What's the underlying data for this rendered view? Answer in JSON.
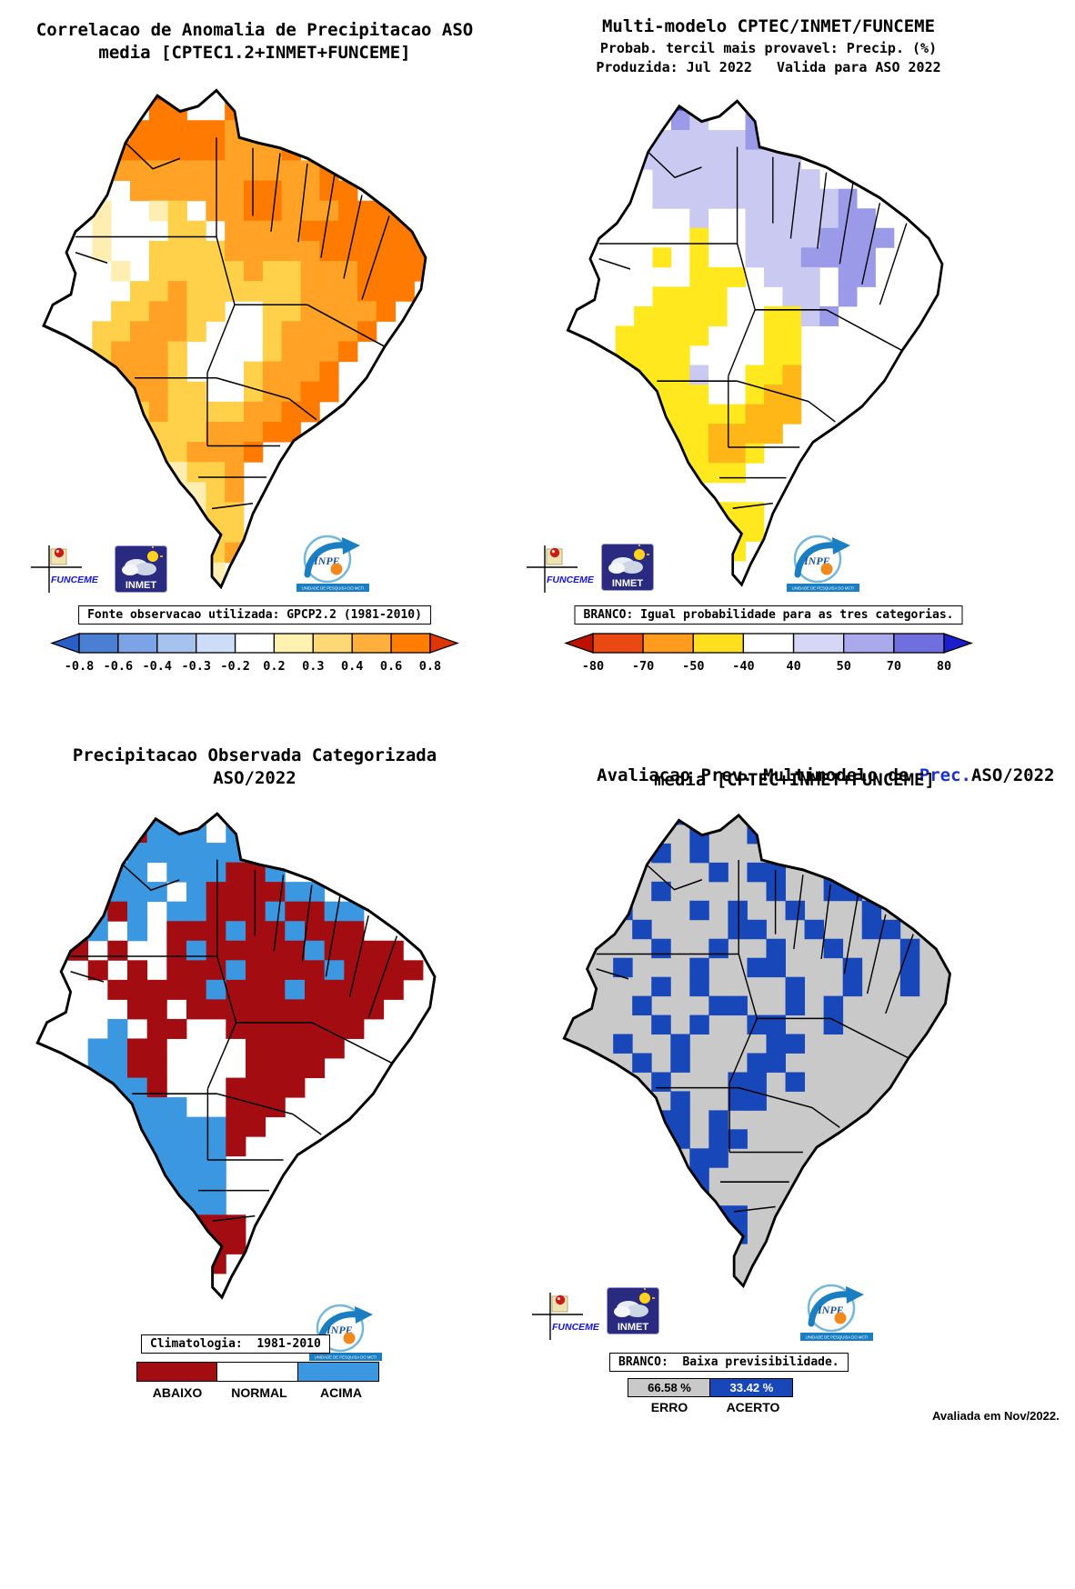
{
  "figure": {
    "footer_note": "Avaliada em Nov/2022."
  },
  "logos": {
    "funceme_label": "FUNCEME",
    "inmet_label": "INMET",
    "inpe_label": "INPE",
    "inpe_banner": "UNIDADE DE PESQUISA DO MCTI"
  },
  "panels": [
    {
      "id": "correlacao-anomalia",
      "title_lines": [
        "Correlacao de Anomalia de Precipitacao ASO",
        "media [CPTEC1.2+INMET+FUNCEME]"
      ],
      "legend_label": "Fonte observacao utilizada: GPCP2.2 (1981-2010)",
      "colorbar": {
        "tick_labels": [
          "-0.8",
          "-0.6",
          "-0.4",
          "-0.3",
          "-0.2",
          "0.2",
          "0.3",
          "0.4",
          "0.6",
          "0.8"
        ],
        "segment_colors": [
          "#4a7fd4",
          "#7ca3e6",
          "#a6c3f0",
          "#cdddf8",
          "#ffffff",
          "#fff2ae",
          "#ffd876",
          "#ffb03c",
          "#ff7d00"
        ],
        "arrow_left_color": "#2b5ec6",
        "arrow_right_color": "#e03505"
      },
      "map": {
        "background": "#ffffff",
        "cell_colors": {
          "r": "#e84300",
          "o": "#ff7a00",
          "O": "#ffa226",
          "y": "#ffd04a",
          "p": "#ffeeb2"
        },
        "grid": [
          ".......rr...o...........",
          ".......oo..ooO..........",
          "......oooooOOO..........",
          ".....ooooooOOOo.........",
          "....oOOOOOOOOOOOo.......",
          "...p..OOOOOOooOOoo......",
          "...pp..py.OOooOOOooooo..",
          "....p...yy.OOOOooooooo..",
          "....p..yyyyOOOOOooooooo.",
          ".....p.yyyyyOyyOOOoooo..",
          "......yyOyyyyyyOOOooo...",
          ".....yyOOyy..yyOOOOo....",
          "....yyOOOy...yOOOOo.....",
          "....yOOOy....yOOOo......",
          ".....OOOy...yOOOo.......",
          ".....yOOyy..yOOoo.......",
          "......yOyyyyOOoo........",
          "......yyyyOOOoo.........",
          ".......yyOOOo...........",
          "........pyyO............",
          "........ppyO............",
          "........ppyy............",
          ".........pyy............",
          ".........pyO............",
          ".........pp.............",
          "........................"
        ]
      }
    },
    {
      "id": "multi-modelo-prob",
      "title_lines": [
        "Multi-modelo CPTEC/INMET/FUNCEME",
        "Probab. tercil mais provavel: Precip. (%)",
        "Produzida: Jul 2022   Valida para ASO 2022"
      ],
      "legend_label": "BRANCO: Igual probabilidade para as tres categorias.",
      "colorbar": {
        "tick_labels": [
          "-80",
          "-70",
          "-50",
          "-40",
          "40",
          "50",
          "70",
          "80"
        ],
        "segment_colors": [
          "#ea4a12",
          "#ff9c1e",
          "#ffdf1e",
          "#ffffff",
          "#d6d6f6",
          "#a9a9ec",
          "#6f6fe0"
        ],
        "arrow_left_color": "#c01000",
        "arrow_right_color": "#1a1ecd"
      },
      "map": {
        "background": "#ffffff",
        "cell_colors": {
          "d": "#2a3cc8",
          "B": "#6b6bdc",
          "b": "#9a9ae8",
          "l": "#c9c9f2",
          "y": "#ffe81e",
          "Y": "#ffb718"
        },
        "grid": [
          ".......dd..l............",
          ".......bl..bl...........",
          "......lllllbl...........",
          ".....lllllllll..........",
          "....l.lllllllll.........",
          "......llllllllllb.......",
          "........l..lllllbb......",
          "........y..llllbbbb.....",
          "......y.y..lllbbbb......",
          "........yyy.lll.bb......",
          "......yyyy...ll.b.......",
          ".....yyyyy..yylb........",
          "....yyyyy...yy..........",
          "....yyyy....yy..........",
          ".....yyyl..yyY..........",
          ".....yyyy..yYY..........",
          "......yyyyyYYY..........",
          "......yyyYYYY...........",
          ".......yyYYy............",
          "........yyy.............",
          "........................",
          ".........yyy............",
          "..........yy............",
          "..........y.............",
          "........................",
          "........................"
        ]
      }
    },
    {
      "id": "precip-observada",
      "title_lines": [
        "Precipitacao Observada Categorizada",
        "ASO/2022"
      ],
      "legend_label": "Climatologia:  1981-2010",
      "categories": [
        {
          "label": "ABAIXO",
          "color": "#a30d12"
        },
        {
          "label": "NORMAL",
          "color": "#ffffff"
        },
        {
          "label": "ACIMA",
          "color": "#3a97e0"
        }
      ],
      "map": {
        "background": "#ffffff",
        "cell_colors": {
          "R": "#a30d12",
          "A": "#3a97e0"
        },
        "grid": [
          ".......AA...A...........",
          "......RAAA.AA...........",
          "....A.AAAAAAA...........",
          "...RRAA.AAARRA..........",
          "..RR.AAA.ARRRRAA........",
          "..RAARA.AARRRARRAA......",
          "..RRA.A.RRRARRARRR......",
          "...R.R..RARRRRRARRRR....",
          "....R.R.RRRARRRRARRRR...",
          ".....RRRRRARRRARRRRR....",
          "......RR.RRRRRRRRRR.....",
          ".....A.RR..RRRRRRR......",
          "....AARR....RRRRR.......",
          "....AARR....RRRR........",
          ".....AAR...RRRR.........",
          ".....AAAA..RRR..........",
          "......AAAAARR...........",
          "......AAAAAR............",
          ".......AAAA.............",
          ".......AAAA.............",
          "........AAA.............",
          ".........RRR............",
          "..........RR............",
          "..........R.............",
          "........................",
          "........................"
        ]
      }
    },
    {
      "id": "avaliacao-prev",
      "title_parts": [
        {
          "text": "Avaliacao Prev. Multimodelo de ",
          "color": "#000000"
        },
        {
          "text": "Prec.",
          "color": "#1b2fd6"
        },
        {
          "text": "ASO/2022",
          "color": "#000000"
        }
      ],
      "title_line2": "media [CPTEC+INMET+FUNCEME]",
      "note_label": "BRANCO:  Baixa previsibilidade.",
      "stats": [
        {
          "label": "ERRO",
          "value": "66.58 %",
          "color": "#c9c9c9",
          "text_color": "#000000"
        },
        {
          "label": "ACERTO",
          "value": "33.42 %",
          "color": "#1747b8",
          "text_color": "#ffffff"
        }
      ],
      "map": {
        "background": "#c9c9c9",
        "cell_colors": {
          "B": "#1747b8"
        },
        "grid": [
          ".......BB...............",
          "........B..B............",
          "......B.B...B...........",
          "....B....B.BB..B........",
          "..B...B.....B..BB.......",
          "....B...B.B..B...B......",
          "..B..B....BB..B..BB.....",
          "......B..B..B..B...B....",
          "....B...B..BB...B..B....",
          "......B.B....B..B..B....",
          ".....B...BB..B.B........",
          "......B.B..BB..B........",
          "....B..B....BB..........",
          ".....B.B...BB...........",
          "......B...BB.B..........",
          ".....B.B..BB............",
          "......BB.B..............",
          ".......B.BB.............",
          "......B.BB..............",
          ".......BB...............",
          "........B...............",
          ".........BB.............",
          "..........B.............",
          "........................",
          "........................",
          "........................"
        ]
      }
    }
  ]
}
